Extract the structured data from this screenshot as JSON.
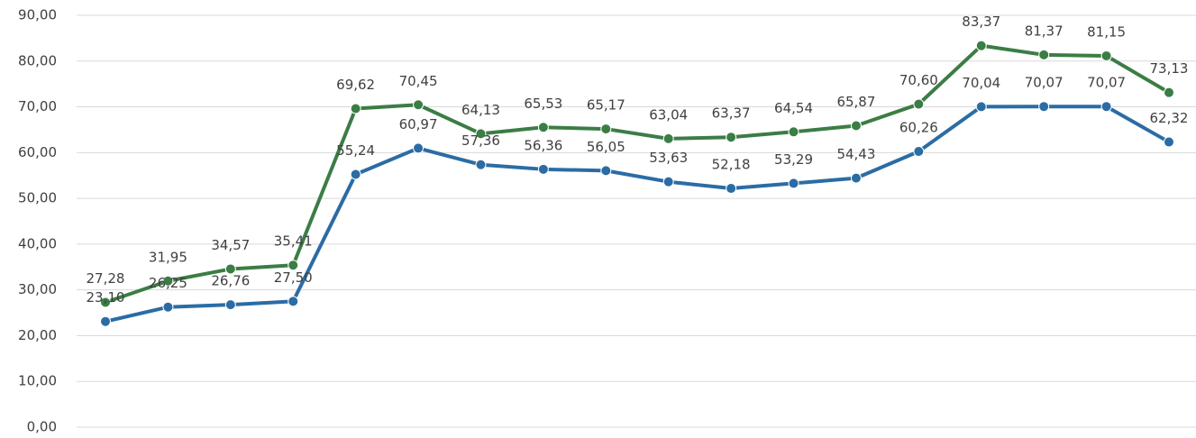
{
  "chart_data": {
    "type": "line",
    "categories": [
      null,
      null,
      null,
      null,
      null,
      null,
      null,
      null,
      null,
      null,
      null,
      null,
      null,
      null,
      null,
      null,
      null,
      null
    ],
    "series": [
      {
        "color": "#3b7d45",
        "values": [
          27.28,
          31.95,
          34.57,
          35.41,
          69.62,
          70.45,
          64.13,
          65.53,
          65.17,
          63.04,
          63.37,
          64.54,
          65.87,
          70.6,
          83.37,
          81.37,
          81.15,
          73.13
        ],
        "value_labels": [
          "27,28",
          "31,95",
          "34,57",
          "35,41",
          "69,62",
          "70,45",
          "64,13",
          "65,53",
          "65,17",
          "63,04",
          "63,37",
          "64,54",
          "65,87",
          "70,60",
          "83,37",
          "81,37",
          "81,15",
          "73,13"
        ]
      },
      {
        "color": "#2b6ca5",
        "values": [
          23.1,
          26.25,
          26.76,
          27.5,
          55.24,
          60.97,
          57.36,
          56.36,
          56.05,
          53.63,
          52.18,
          53.29,
          54.43,
          60.26,
          70.04,
          70.07,
          70.07,
          62.32
        ],
        "value_labels": [
          "23,10",
          "26,25",
          "26,76",
          "27,50",
          "55,24",
          "60,97",
          "57,36",
          "56,36",
          "56,05",
          "53,63",
          "52,18",
          "53,29",
          "54,43",
          "60,26",
          "70,04",
          "70,07",
          "70,07",
          "62,32"
        ]
      }
    ],
    "ylim": [
      0,
      90
    ],
    "yticks": [
      {
        "value": 0,
        "label": "0,00"
      },
      {
        "value": 10,
        "label": "10,00"
      },
      {
        "value": 20,
        "label": "20,00"
      },
      {
        "value": 30,
        "label": "30,00"
      },
      {
        "value": 40,
        "label": "40,00"
      },
      {
        "value": 50,
        "label": "50,00"
      },
      {
        "value": 60,
        "label": "60,00"
      },
      {
        "value": 70,
        "label": "70,00"
      },
      {
        "value": 80,
        "label": "80,00"
      },
      {
        "value": 90,
        "label": "90,00"
      }
    ],
    "grid": true
  }
}
